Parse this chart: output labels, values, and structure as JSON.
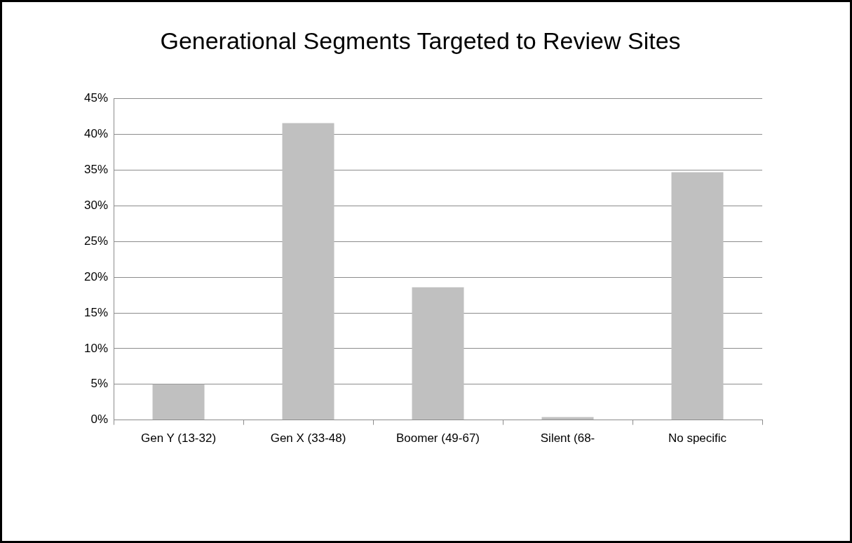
{
  "chart_data": {
    "type": "bar",
    "title": "Generational Segments Targeted to Review Sites",
    "categories": [
      "Gen Y (13-32)",
      "Gen X (33-48)",
      "Boomer (49-67)",
      "Silent (68-",
      "No specific"
    ],
    "values": [
      5,
      41.6,
      18.6,
      0.4,
      34.7
    ],
    "color": "#c0c0c0",
    "ylim": [
      0,
      45
    ],
    "yticks": [
      {
        "value": 0,
        "label": "0%"
      },
      {
        "value": 5,
        "label": "5%"
      },
      {
        "value": 10,
        "label": "10%"
      },
      {
        "value": 15,
        "label": "15%"
      },
      {
        "value": 20,
        "label": "20%"
      },
      {
        "value": 25,
        "label": "25%"
      },
      {
        "value": 30,
        "label": "30%"
      },
      {
        "value": 35,
        "label": "35%"
      },
      {
        "value": 40,
        "label": "40%"
      },
      {
        "value": 45,
        "label": "45%"
      }
    ],
    "grid": "y",
    "legend": false
  }
}
